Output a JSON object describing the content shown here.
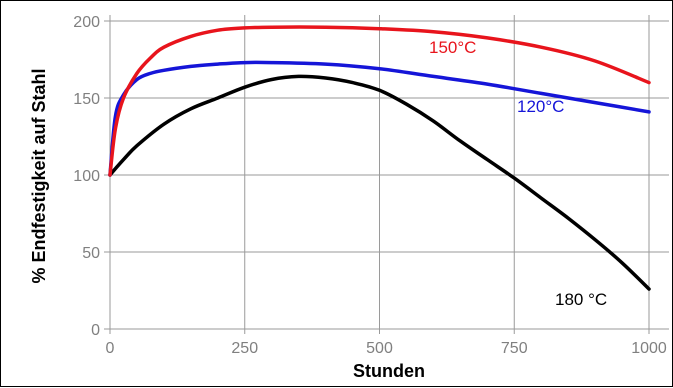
{
  "chart_data": {
    "type": "line",
    "title": "",
    "xlabel": "Stunden",
    "ylabel": "% Endfestigkeit auf Stahl",
    "xlim": [
      0,
      1000
    ],
    "ylim": [
      0,
      200
    ],
    "x_ticks": [
      0,
      250,
      500,
      750,
      1000
    ],
    "y_ticks": [
      0,
      50,
      100,
      150,
      200
    ],
    "grid": true,
    "legend": "none",
    "series": [
      {
        "name": "150°C",
        "color": "#e8141c",
        "x": [
          0,
          10,
          25,
          50,
          75,
          100,
          150,
          200,
          250,
          300,
          400,
          500,
          600,
          700,
          800,
          900,
          1000
        ],
        "y": [
          100,
          130,
          150,
          166,
          176,
          183,
          190,
          194,
          195.5,
          196,
          196,
          195,
          193,
          189,
          183,
          174,
          160
        ]
      },
      {
        "name": "120°C",
        "color": "#1515d8",
        "x": [
          0,
          10,
          25,
          50,
          75,
          100,
          150,
          200,
          250,
          300,
          400,
          500,
          600,
          700,
          800,
          900,
          1000
        ],
        "y": [
          100,
          138,
          152,
          162,
          166,
          168,
          170.5,
          172,
          173,
          173,
          172,
          169,
          164,
          159,
          153,
          147,
          141
        ]
      },
      {
        "name": "180 °C",
        "color": "#000000",
        "x": [
          0,
          25,
          50,
          100,
          150,
          200,
          250,
          300,
          350,
          400,
          450,
          500,
          550,
          600,
          650,
          700,
          750,
          800,
          850,
          900,
          950,
          1000
        ],
        "y": [
          100,
          110,
          119,
          133,
          143,
          150,
          157,
          162,
          164,
          163,
          160,
          155,
          146,
          135,
          122,
          110,
          98,
          85,
          72,
          58,
          43,
          26
        ]
      }
    ]
  }
}
